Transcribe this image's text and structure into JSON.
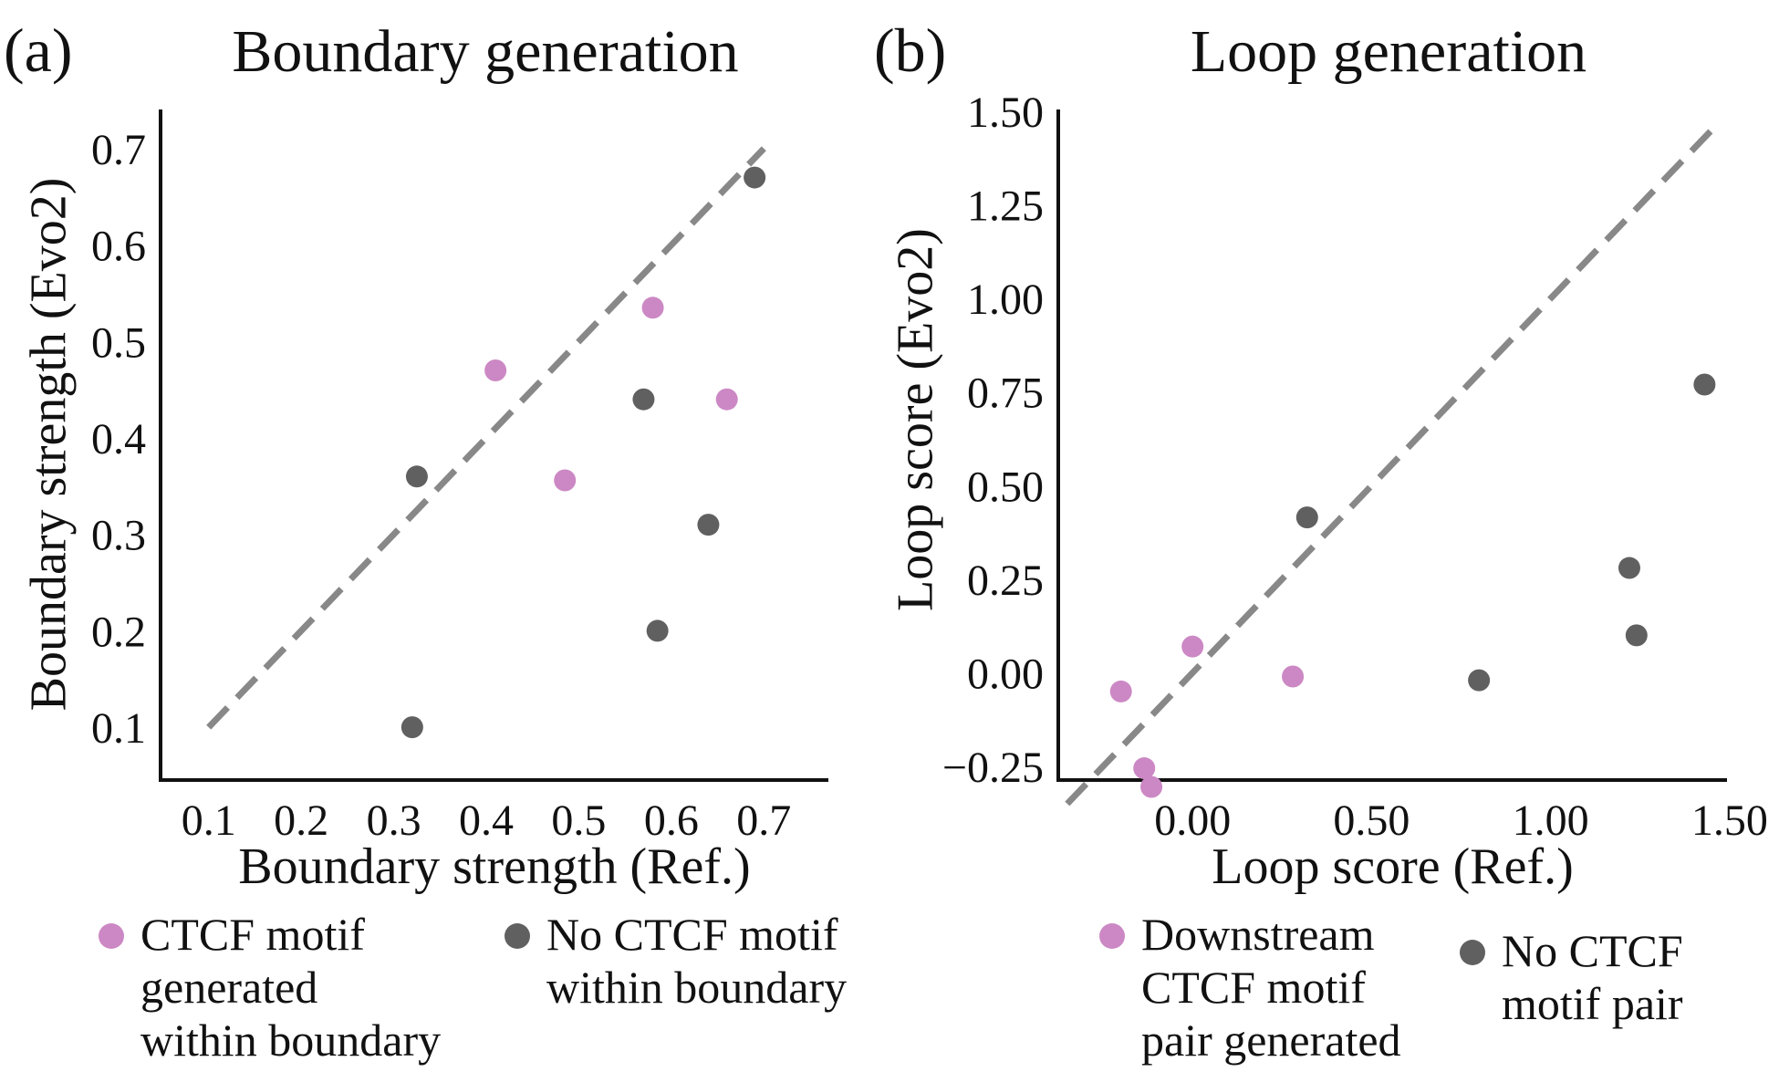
{
  "colors": {
    "pink": "#cc88c4",
    "gray": "#606060",
    "diag": "#888888",
    "axis": "#111111"
  },
  "chart_data": [
    {
      "type": "scatter",
      "panel_label": "(a)",
      "title": "Boundary generation",
      "xlabel": "Boundary strength (Ref.)",
      "ylabel": "Boundary strength (Evo2)",
      "xlim": [
        0.05,
        0.75
      ],
      "ylim": [
        0.05,
        0.75
      ],
      "xticks": [
        0.1,
        0.2,
        0.3,
        0.4,
        0.5,
        0.6,
        0.7
      ],
      "yticks": [
        0.1,
        0.2,
        0.3,
        0.4,
        0.5,
        0.6,
        0.7
      ],
      "xtick_labels": [
        "0.1",
        "0.2",
        "0.3",
        "0.4",
        "0.5",
        "0.6",
        "0.7"
      ],
      "ytick_labels": [
        "0.1",
        "0.2",
        "0.3",
        "0.4",
        "0.5",
        "0.6",
        "0.7"
      ],
      "diagonal": [
        0.1,
        0.7
      ],
      "series": [
        {
          "name": "CTCF motif\ngenerated\nwithin boundary",
          "color_key": "pink",
          "points": [
            [
              0.41,
              0.47
            ],
            [
              0.485,
              0.356
            ],
            [
              0.58,
              0.535
            ],
            [
              0.66,
              0.44
            ]
          ]
        },
        {
          "name": "No CTCF motif\nwithin boundary",
          "color_key": "gray",
          "points": [
            [
              0.325,
              0.36
            ],
            [
              0.32,
              0.1
            ],
            [
              0.57,
              0.44
            ],
            [
              0.585,
              0.2
            ],
            [
              0.64,
              0.31
            ],
            [
              0.69,
              0.67
            ]
          ]
        }
      ]
    },
    {
      "type": "scatter",
      "panel_label": "(b)",
      "title": "Loop generation",
      "xlabel": "Loop score (Ref.)",
      "ylabel": "Loop score (Evo2)",
      "xlim": [
        -0.37,
        1.48
      ],
      "ylim": [
        -0.35,
        1.5
      ],
      "xticks": [
        0.0,
        0.5,
        1.0,
        1.5
      ],
      "yticks": [
        -0.25,
        0.0,
        0.25,
        0.5,
        0.75,
        1.0,
        1.25,
        1.5
      ],
      "xtick_labels": [
        "0.00",
        "0.50",
        "1.00",
        "1.50"
      ],
      "ytick_labels": [
        "−0.25",
        "0.00",
        "0.25",
        "0.50",
        "0.75",
        "1.00",
        "1.25",
        "1.50"
      ],
      "diagonal": [
        -0.35,
        1.45
      ],
      "series": [
        {
          "name": "Downstream\nCTCF motif\npair generated",
          "color_key": "pink",
          "points": [
            [
              -0.2,
              -0.05
            ],
            [
              -0.135,
              -0.255
            ],
            [
              -0.115,
              -0.305
            ],
            [
              0.0,
              0.07
            ],
            [
              0.28,
              -0.01
            ]
          ]
        },
        {
          "name": "No CTCF\nmotif pair",
          "color_key": "gray",
          "points": [
            [
              0.32,
              0.415
            ],
            [
              0.8,
              -0.02
            ],
            [
              1.22,
              0.28
            ],
            [
              1.24,
              0.1
            ],
            [
              1.43,
              0.77
            ]
          ]
        }
      ]
    }
  ]
}
